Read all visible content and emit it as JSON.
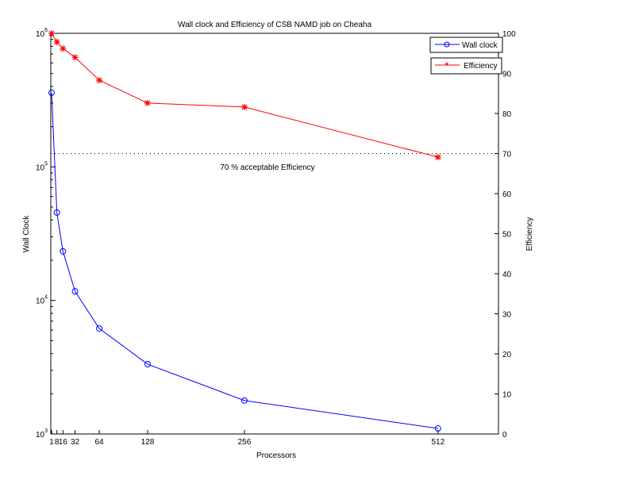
{
  "chart_data": {
    "type": "line",
    "title": "Wall clock and Efficiency of  CSB NAMD job on Cheaha",
    "xlabel": "Processors",
    "ylabel_left": "Wall Clock",
    "ylabel_right": "Efficiency",
    "x": [
      1,
      8,
      16,
      32,
      64,
      128,
      256,
      512
    ],
    "xticks": [
      1,
      8,
      16,
      32,
      64,
      128,
      256,
      512
    ],
    "xlim": [
      1,
      593
    ],
    "y_left_scale": "log",
    "y_left_lim": [
      1000,
      1000000
    ],
    "y_left_ticks": [
      {
        "base": "10",
        "exp": "3",
        "value": 1000
      },
      {
        "base": "10",
        "exp": "4",
        "value": 10000
      },
      {
        "base": "10",
        "exp": "5",
        "value": 100000
      },
      {
        "base": "10",
        "exp": "6",
        "value": 1000000
      }
    ],
    "y_right_lim": [
      0,
      100
    ],
    "y_right_ticks": [
      0,
      10,
      20,
      30,
      40,
      50,
      60,
      70,
      80,
      90,
      100
    ],
    "series": [
      {
        "name": "Wall clock",
        "axis": "left",
        "color": "#0000ff",
        "marker": "circle",
        "values": [
          359000,
          45500,
          23300,
          11700,
          6170,
          3330,
          1780,
          1100
        ]
      },
      {
        "name": "Efficiency",
        "axis": "right",
        "color": "#ff0000",
        "marker": "star",
        "values": [
          100,
          97.8,
          96.2,
          94,
          88.3,
          82.6,
          81.6,
          69.1
        ]
      }
    ],
    "reference_line": {
      "value": 70,
      "axis": "right",
      "label": "70 % acceptable  Efficiency"
    },
    "legend_placement": "top-right",
    "grid": false
  }
}
